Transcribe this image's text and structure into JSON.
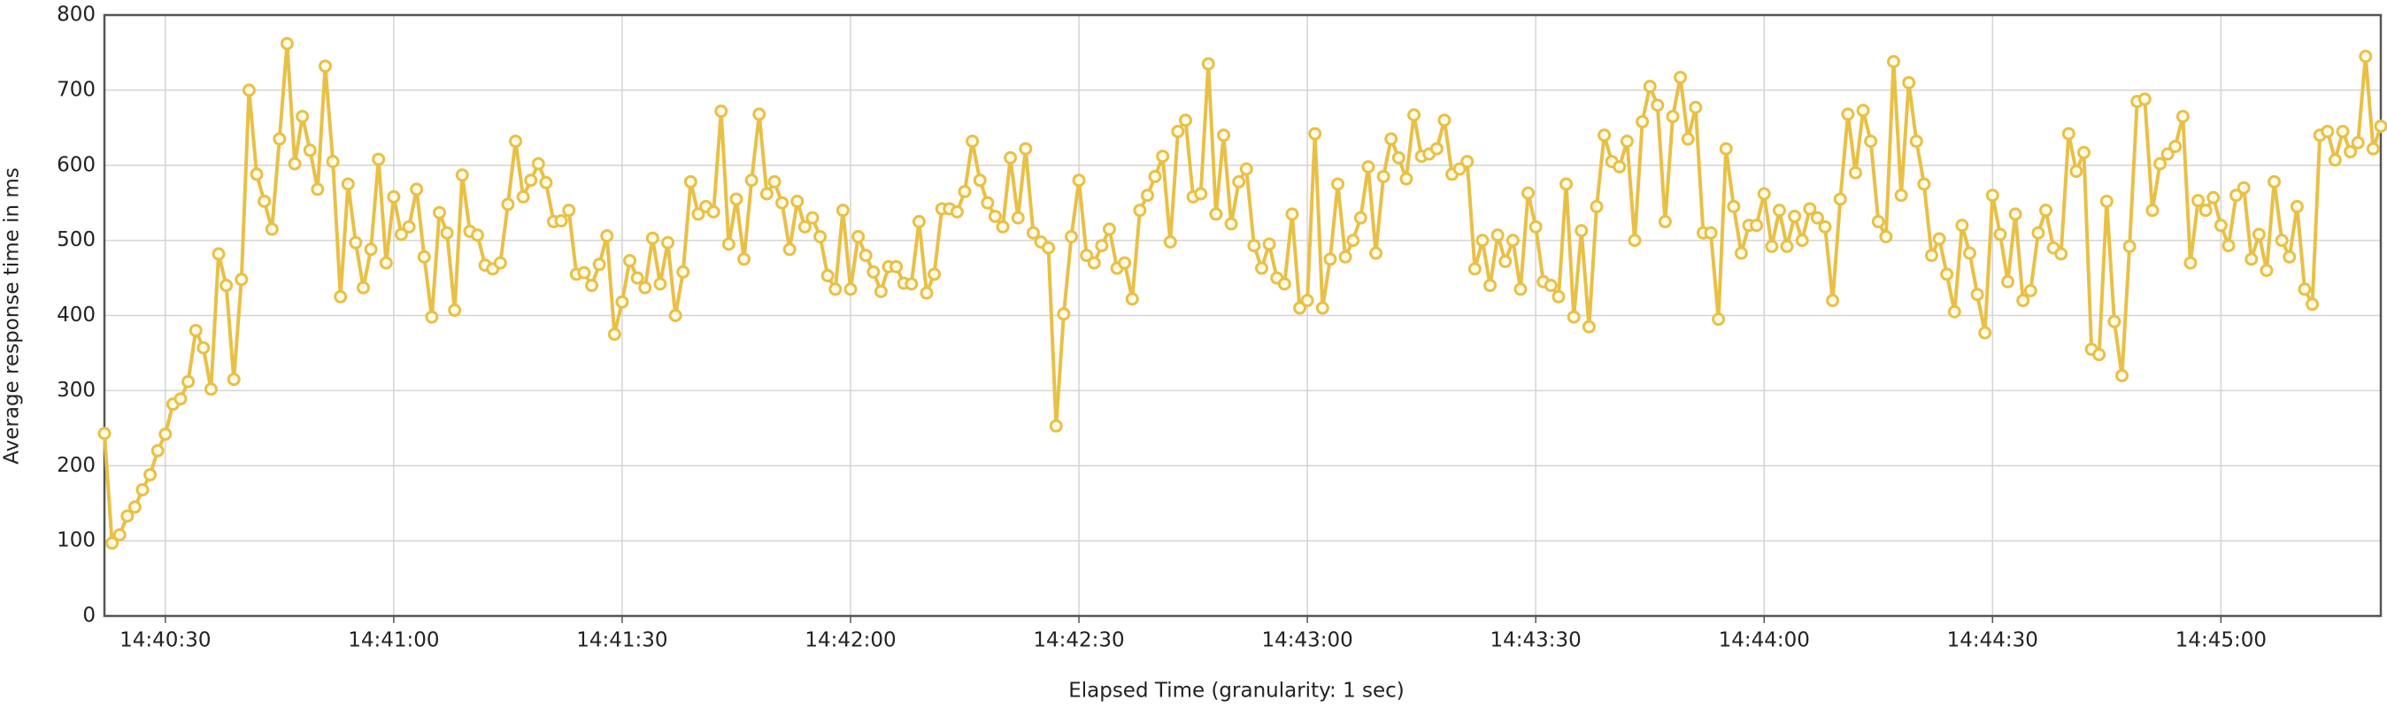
{
  "chart_data": {
    "type": "line",
    "xlabel": "Elapsed Time (granularity: 1 sec)",
    "ylabel": "Average response time in ms",
    "grid": true,
    "xlim": [
      "14:40:22",
      "14:45:21"
    ],
    "xticks": [
      "14:40:30",
      "14:41:00",
      "14:41:30",
      "14:42:00",
      "14:42:30",
      "14:43:00",
      "14:43:30",
      "14:44:00",
      "14:44:30",
      "14:45:00"
    ],
    "ylim": [
      0,
      800
    ],
    "yticks": [
      0,
      100,
      200,
      300,
      400,
      500,
      600,
      700,
      800
    ],
    "x": [
      "14:40:22",
      "14:40:23",
      "14:40:24",
      "14:40:25",
      "14:40:26",
      "14:40:27",
      "14:40:28",
      "14:40:29",
      "14:40:30",
      "14:40:31",
      "14:40:32",
      "14:40:33",
      "14:40:34",
      "14:40:35",
      "14:40:36",
      "14:40:37",
      "14:40:38",
      "14:40:39",
      "14:40:40",
      "14:40:41",
      "14:40:42",
      "14:40:43",
      "14:40:44",
      "14:40:45",
      "14:40:46",
      "14:40:47",
      "14:40:48",
      "14:40:49",
      "14:40:50",
      "14:40:51",
      "14:40:52",
      "14:40:53",
      "14:40:54",
      "14:40:55",
      "14:40:56",
      "14:40:57",
      "14:40:58",
      "14:40:59",
      "14:41:00",
      "14:41:01",
      "14:41:02",
      "14:41:03",
      "14:41:04",
      "14:41:05",
      "14:41:06",
      "14:41:07",
      "14:41:08",
      "14:41:09",
      "14:41:10",
      "14:41:11",
      "14:41:12",
      "14:41:13",
      "14:41:14",
      "14:41:15",
      "14:41:16",
      "14:41:17",
      "14:41:18",
      "14:41:19",
      "14:41:20",
      "14:41:21",
      "14:41:22",
      "14:41:23",
      "14:41:24",
      "14:41:25",
      "14:41:26",
      "14:41:27",
      "14:41:28",
      "14:41:29",
      "14:41:30",
      "14:41:31",
      "14:41:32",
      "14:41:33",
      "14:41:34",
      "14:41:35",
      "14:41:36",
      "14:41:37",
      "14:41:38",
      "14:41:39",
      "14:41:40",
      "14:41:41",
      "14:41:42",
      "14:41:43",
      "14:41:44",
      "14:41:45",
      "14:41:46",
      "14:41:47",
      "14:41:48",
      "14:41:49",
      "14:41:50",
      "14:41:51",
      "14:41:52",
      "14:41:53",
      "14:41:54",
      "14:41:55",
      "14:41:56",
      "14:41:57",
      "14:41:58",
      "14:41:59",
      "14:42:00",
      "14:42:01",
      "14:42:02",
      "14:42:03",
      "14:42:04",
      "14:42:05",
      "14:42:06",
      "14:42:07",
      "14:42:08",
      "14:42:09",
      "14:42:10",
      "14:42:11",
      "14:42:12",
      "14:42:13",
      "14:42:14",
      "14:42:15",
      "14:42:16",
      "14:42:17",
      "14:42:18",
      "14:42:19",
      "14:42:20",
      "14:42:21",
      "14:42:22",
      "14:42:23",
      "14:42:24",
      "14:42:25",
      "14:42:26",
      "14:42:27",
      "14:42:28",
      "14:42:29",
      "14:42:30",
      "14:42:31",
      "14:42:32",
      "14:42:33",
      "14:42:34",
      "14:42:35",
      "14:42:36",
      "14:42:37",
      "14:42:38",
      "14:42:39",
      "14:42:40",
      "14:42:41",
      "14:42:42",
      "14:42:43",
      "14:42:44",
      "14:42:45",
      "14:42:46",
      "14:42:47",
      "14:42:48",
      "14:42:49",
      "14:42:50",
      "14:42:51",
      "14:42:52",
      "14:42:53",
      "14:42:54",
      "14:42:55",
      "14:42:56",
      "14:42:57",
      "14:42:58",
      "14:42:59",
      "14:43:00",
      "14:43:01",
      "14:43:02",
      "14:43:03",
      "14:43:04",
      "14:43:05",
      "14:43:06",
      "14:43:07",
      "14:43:08",
      "14:43:09",
      "14:43:10",
      "14:43:11",
      "14:43:12",
      "14:43:13",
      "14:43:14",
      "14:43:15",
      "14:43:16",
      "14:43:17",
      "14:43:18",
      "14:43:19",
      "14:43:20",
      "14:43:21",
      "14:43:22",
      "14:43:23",
      "14:43:24",
      "14:43:25",
      "14:43:26",
      "14:43:27",
      "14:43:28",
      "14:43:29",
      "14:43:30",
      "14:43:31",
      "14:43:32",
      "14:43:33",
      "14:43:34",
      "14:43:35",
      "14:43:36",
      "14:43:37",
      "14:43:38",
      "14:43:39",
      "14:43:40",
      "14:43:41",
      "14:43:42",
      "14:43:43",
      "14:43:44",
      "14:43:45",
      "14:43:46",
      "14:43:47",
      "14:43:48",
      "14:43:49",
      "14:43:50",
      "14:43:51",
      "14:43:52",
      "14:43:53",
      "14:43:54",
      "14:43:55",
      "14:43:56",
      "14:43:57",
      "14:43:58",
      "14:43:59",
      "14:44:00",
      "14:44:01",
      "14:44:02",
      "14:44:03",
      "14:44:04",
      "14:44:05",
      "14:44:06",
      "14:44:07",
      "14:44:08",
      "14:44:09",
      "14:44:10",
      "14:44:11",
      "14:44:12",
      "14:44:13",
      "14:44:14",
      "14:44:15",
      "14:44:16",
      "14:44:17",
      "14:44:18",
      "14:44:19",
      "14:44:20",
      "14:44:21",
      "14:44:22",
      "14:44:23",
      "14:44:24",
      "14:44:25",
      "14:44:26",
      "14:44:27",
      "14:44:28",
      "14:44:29",
      "14:44:30",
      "14:44:31",
      "14:44:32",
      "14:44:33",
      "14:44:34",
      "14:44:35",
      "14:44:36",
      "14:44:37",
      "14:44:38",
      "14:44:39",
      "14:44:40",
      "14:44:41",
      "14:44:42",
      "14:44:43",
      "14:44:44",
      "14:44:45",
      "14:44:46",
      "14:44:47",
      "14:44:48",
      "14:44:49",
      "14:44:50",
      "14:44:51",
      "14:44:52",
      "14:44:53",
      "14:44:54",
      "14:44:55",
      "14:44:56",
      "14:44:57",
      "14:44:58",
      "14:44:59",
      "14:45:00",
      "14:45:01",
      "14:45:02",
      "14:45:03",
      "14:45:04",
      "14:45:05",
      "14:45:06",
      "14:45:07",
      "14:45:08",
      "14:45:09",
      "14:45:10",
      "14:45:11",
      "14:45:12",
      "14:45:13",
      "14:45:14",
      "14:45:15",
      "14:45:16",
      "14:45:17",
      "14:45:18",
      "14:45:19",
      "14:45:20",
      "14:45:21"
    ],
    "series": [
      {
        "color": "#e9c046",
        "values": [
          243,
          97,
          108,
          133,
          145,
          168,
          188,
          220,
          242,
          282,
          289,
          312,
          380,
          357,
          302,
          482,
          440,
          315,
          448,
          700,
          588,
          552,
          515,
          635,
          762,
          602,
          665,
          620,
          568,
          732,
          605,
          425,
          575,
          497,
          437,
          488,
          608,
          470,
          558,
          508,
          518,
          568,
          478,
          398,
          537,
          510,
          407,
          587,
          512,
          507,
          467,
          462,
          470,
          548,
          632,
          558,
          580,
          602,
          577,
          525,
          526,
          540,
          455,
          457,
          440,
          468,
          506,
          375,
          418,
          473,
          450,
          437,
          503,
          442,
          497,
          400,
          458,
          578,
          535,
          545,
          538,
          672,
          495,
          555,
          475,
          580,
          668,
          562,
          578,
          550,
          488,
          552,
          518,
          530,
          505,
          453,
          435,
          540,
          435,
          505,
          480,
          458,
          432,
          465,
          465,
          443,
          442,
          525,
          430,
          455,
          542,
          542,
          538,
          565,
          632,
          580,
          550,
          532,
          518,
          610,
          530,
          622,
          510,
          498,
          490,
          253,
          402,
          505,
          580,
          480,
          470,
          493,
          515,
          463,
          470,
          422,
          540,
          560,
          585,
          612,
          498,
          645,
          660,
          558,
          562,
          735,
          535,
          640,
          522,
          578,
          595,
          493,
          463,
          495,
          450,
          442,
          535,
          410,
          420,
          642,
          410,
          475,
          575,
          478,
          500,
          530,
          598,
          483,
          585,
          635,
          610,
          582,
          667,
          612,
          615,
          622,
          660,
          588,
          595,
          605,
          462,
          500,
          440,
          507,
          472,
          500,
          435,
          563,
          518,
          445,
          440,
          425,
          575,
          398,
          513,
          385,
          545,
          640,
          605,
          598,
          632,
          500,
          658,
          705,
          680,
          525,
          665,
          717,
          635,
          677,
          510,
          510,
          395,
          622,
          545,
          483,
          520,
          520,
          562,
          492,
          540,
          492,
          532,
          500,
          542,
          530,
          518,
          420,
          555,
          668,
          590,
          673,
          632,
          525,
          505,
          738,
          560,
          710,
          632,
          575,
          480,
          502,
          455,
          405,
          520,
          483,
          428,
          377,
          560,
          508,
          445,
          535,
          420,
          433,
          510,
          540,
          490,
          482,
          642,
          592,
          617,
          355,
          348,
          552,
          392,
          320,
          492,
          685,
          688,
          540,
          602,
          615,
          625,
          665,
          470,
          553,
          540,
          557,
          520,
          493,
          560,
          570,
          475,
          508,
          460,
          578,
          500,
          478,
          545,
          435,
          415,
          640,
          645,
          607,
          645,
          618,
          630,
          745,
          622,
          652
        ]
      }
    ]
  }
}
